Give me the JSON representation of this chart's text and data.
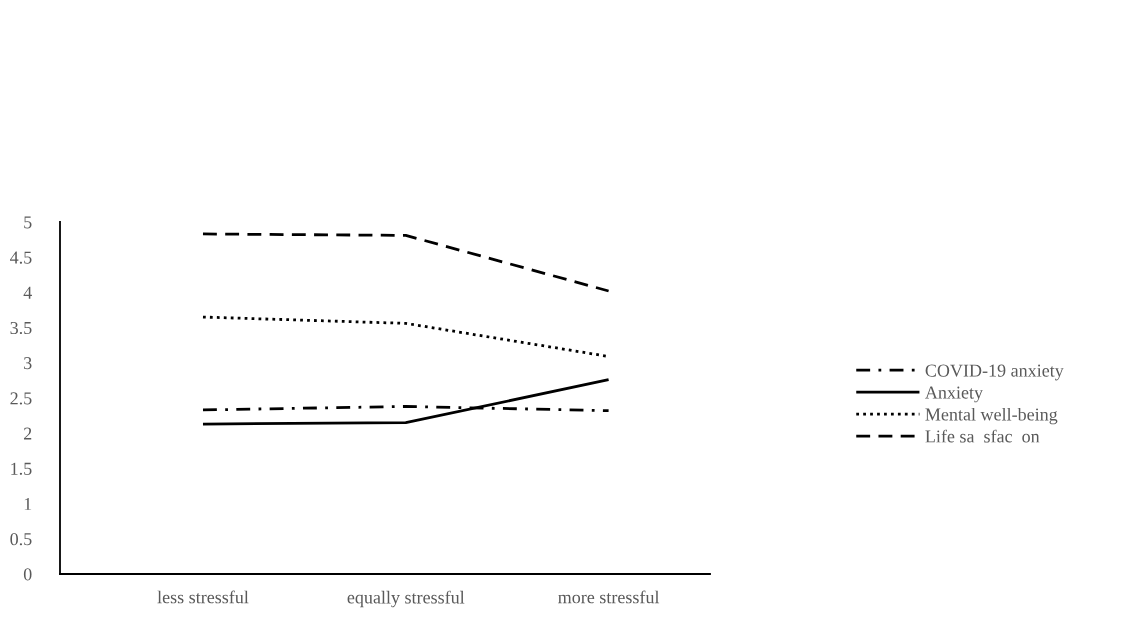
{
  "chart_data": {
    "type": "line",
    "categories": [
      "less stressful",
      "equally stressful",
      "more stressful"
    ],
    "series": [
      {
        "name": "COVID-19 anxiety",
        "color": "#000000",
        "line_style": "dashdot",
        "values": [
          2.33,
          2.38,
          2.32
        ]
      },
      {
        "name": "Anxiety",
        "color": "#000000",
        "line_style": "solid",
        "values": [
          2.13,
          2.15,
          2.76
        ]
      },
      {
        "name": "Mental well-being",
        "color": "#000000",
        "line_style": "dotted",
        "values": [
          3.65,
          3.56,
          3.09
        ]
      },
      {
        "name": "Life sa  sfac  on",
        "color": "#000000",
        "line_style": "dashed",
        "values": [
          4.83,
          4.81,
          4.02
        ]
      }
    ],
    "ylim": [
      0,
      5
    ],
    "yticks": [
      0,
      0.5,
      1,
      1.5,
      2,
      2.5,
      3,
      3.5,
      4,
      4.5,
      5
    ],
    "grid": false,
    "legend": "right",
    "marker": "none"
  }
}
